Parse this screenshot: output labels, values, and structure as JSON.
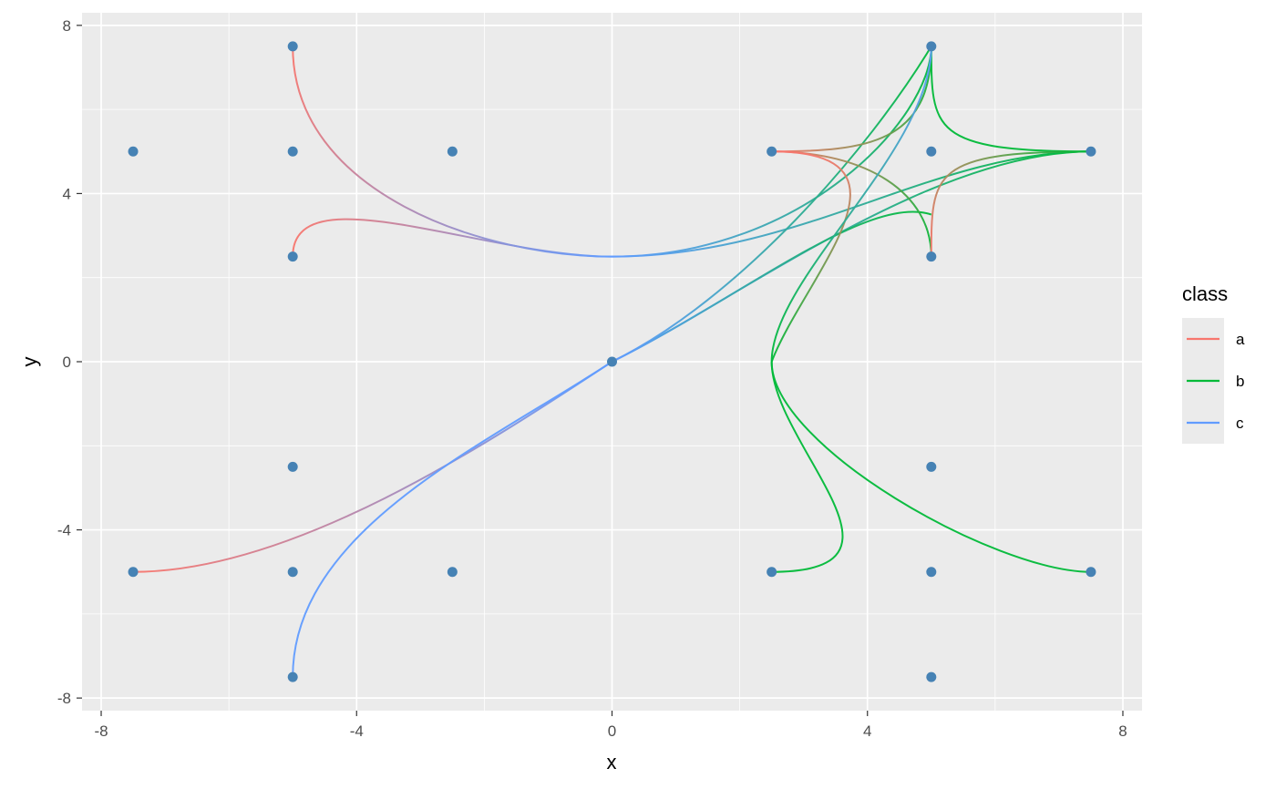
{
  "chart_data": {
    "type": "line",
    "xlabel": "x",
    "ylabel": "y",
    "xlim": [
      -8.3,
      8.3
    ],
    "ylim": [
      -8.3,
      8.3
    ],
    "x_ticks": [
      -8,
      -4,
      0,
      4,
      8
    ],
    "y_ticks": [
      -8,
      -4,
      0,
      4,
      8
    ],
    "x_tick_labels": [
      "-8",
      "-4",
      "0",
      "4",
      "8"
    ],
    "y_tick_labels": [
      "-8",
      "-4",
      "0",
      "4",
      "8"
    ],
    "grid": true,
    "panel_background": "#ebebeb",
    "point_color": "#4682b4",
    "points": [
      [
        -7.5,
        5
      ],
      [
        -5,
        7.5
      ],
      [
        -5,
        5
      ],
      [
        -2.5,
        5
      ],
      [
        -5,
        2.5
      ],
      [
        0,
        0
      ],
      [
        -5,
        -2.5
      ],
      [
        -7.5,
        -5
      ],
      [
        -5,
        -5
      ],
      [
        -2.5,
        -5
      ],
      [
        -5,
        -7.5
      ],
      [
        5,
        7.5
      ],
      [
        2.5,
        5
      ],
      [
        5,
        5
      ],
      [
        7.5,
        5
      ],
      [
        5,
        2.5
      ],
      [
        5,
        -2.5
      ],
      [
        2.5,
        -5
      ],
      [
        5,
        -5
      ],
      [
        7.5,
        -5
      ],
      [
        5,
        -7.5
      ]
    ],
    "legend": {
      "title": "class",
      "position": "right",
      "entries": [
        {
          "label": "a",
          "color": "#f8766d"
        },
        {
          "label": "b",
          "color": "#00ba38"
        },
        {
          "label": "c",
          "color": "#619cff"
        }
      ]
    },
    "series": [
      {
        "from_color": "#f8766d",
        "to_color": "#619cff",
        "points": [
          [
            -5,
            2.5
          ],
          [
            -5,
            4.5
          ],
          [
            -2,
            2.5
          ],
          [
            0,
            2.5
          ]
        ]
      },
      {
        "from_color": "#f8766d",
        "to_color": "#619cff",
        "points": [
          [
            -5,
            7.5
          ],
          [
            -5,
            4
          ],
          [
            -2,
            2.5
          ],
          [
            0,
            2.5
          ]
        ]
      },
      {
        "from_color": "#619cff",
        "to_color": "#00ba38",
        "points": [
          [
            0,
            2.5
          ],
          [
            3,
            2.5
          ],
          [
            5,
            5
          ],
          [
            7.5,
            5
          ]
        ]
      },
      {
        "from_color": "#619cff",
        "to_color": "#00ba38",
        "points": [
          [
            0,
            2.5
          ],
          [
            3,
            2.5
          ],
          [
            5,
            5.8
          ],
          [
            5,
            7.5
          ]
        ]
      },
      {
        "from_color": "#f8766d",
        "to_color": "#619cff",
        "points": [
          [
            -7.5,
            -5
          ],
          [
            -5,
            -5
          ],
          [
            -2,
            -2
          ],
          [
            0,
            0
          ]
        ]
      },
      {
        "from_color": "#619cff",
        "to_color": "#619cff",
        "points": [
          [
            -5,
            -7.5
          ],
          [
            -5,
            -4
          ],
          [
            -2,
            -2
          ],
          [
            0,
            0
          ]
        ]
      },
      {
        "from_color": "#619cff",
        "to_color": "#00ba38",
        "points": [
          [
            0,
            0
          ],
          [
            2,
            1.5
          ],
          [
            5,
            5
          ],
          [
            7.5,
            5
          ]
        ]
      },
      {
        "from_color": "#619cff",
        "to_color": "#00ba38",
        "points": [
          [
            0,
            0
          ],
          [
            2,
            1.5
          ],
          [
            4,
            4
          ],
          [
            5,
            3.5
          ]
        ]
      },
      {
        "from_color": "#619cff",
        "to_color": "#00ba38",
        "points": [
          [
            0,
            0
          ],
          [
            2,
            1.5
          ],
          [
            4,
            5
          ],
          [
            5,
            7.5
          ]
        ]
      },
      {
        "from_color": "#f8766d",
        "to_color": "#00ba38",
        "points": [
          [
            2.5,
            5
          ],
          [
            4,
            5
          ],
          [
            5,
            5.2
          ],
          [
            5,
            7.5
          ]
        ]
      },
      {
        "from_color": "#f8766d",
        "to_color": "#00ba38",
        "points": [
          [
            2.5,
            5
          ],
          [
            4,
            5
          ],
          [
            5,
            4
          ],
          [
            5,
            2.5
          ]
        ]
      },
      {
        "from_color": "#00ba38",
        "to_color": "#00ba38",
        "points": [
          [
            7.5,
            5
          ],
          [
            5,
            5
          ],
          [
            5,
            5.5
          ],
          [
            5,
            7.5
          ]
        ]
      },
      {
        "from_color": "#00ba38",
        "to_color": "#f8766d",
        "points": [
          [
            7.5,
            5
          ],
          [
            5,
            5
          ],
          [
            5,
            4.5
          ],
          [
            5,
            2.5
          ]
        ]
      },
      {
        "from_color": "#f8766d",
        "to_color": "#00ba38",
        "points": [
          [
            2.5,
            5
          ],
          [
            5,
            5
          ],
          [
            3,
            2
          ],
          [
            2.5,
            0
          ]
        ]
      },
      {
        "from_color": "#619cff",
        "to_color": "#00ba38",
        "points": [
          [
            5,
            7.5
          ],
          [
            5,
            5
          ],
          [
            2.5,
            2
          ],
          [
            2.5,
            0
          ]
        ]
      },
      {
        "from_color": "#00ba38",
        "to_color": "#00ba38",
        "points": [
          [
            2.5,
            0
          ],
          [
            2.5,
            -2
          ],
          [
            6,
            -5
          ],
          [
            7.5,
            -5
          ]
        ]
      },
      {
        "from_color": "#00ba38",
        "to_color": "#00ba38",
        "points": [
          [
            2.5,
            0
          ],
          [
            2.5,
            -2
          ],
          [
            5,
            -5
          ],
          [
            2.5,
            -5
          ]
        ]
      }
    ]
  }
}
